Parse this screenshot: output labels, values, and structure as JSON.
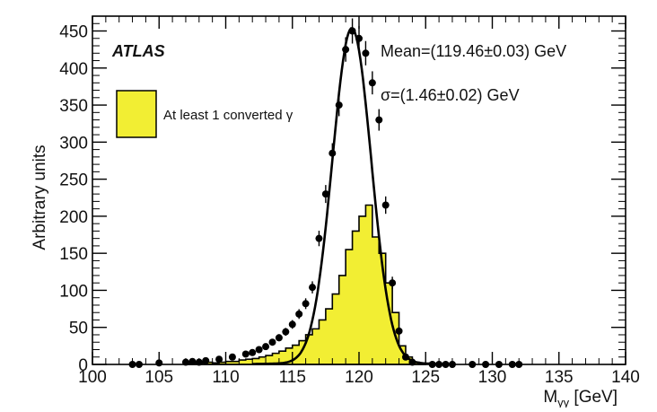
{
  "chart_data": {
    "type": "histogram",
    "experiment_label": "ATLAS",
    "xlabel": "M",
    "xlabel_sub": "γγ",
    "xlabel_unit": " [GeV]",
    "ylabel": "Arbitrary units",
    "xlim": [
      100,
      140
    ],
    "ylim": [
      0,
      470
    ],
    "x_ticks": [
      100,
      105,
      110,
      115,
      120,
      125,
      130,
      135,
      140
    ],
    "y_ticks": [
      0,
      50,
      100,
      150,
      200,
      250,
      300,
      350,
      400,
      450
    ],
    "annotations": {
      "mean": "Mean=(119.46±0.03) GeV",
      "sigma": "σ=(1.46±0.02) GeV"
    },
    "legend": {
      "label": "At least 1 converted γ",
      "color": "#f2ee33"
    },
    "colors": {
      "fill": "#f2ee33",
      "line": "#000000"
    },
    "converted_histogram": {
      "bin_width": 0.5,
      "edges_start": 107,
      "values": [
        1,
        2,
        2,
        3,
        2,
        3,
        4,
        4,
        6,
        7,
        8,
        10,
        12,
        15,
        18,
        22,
        26,
        32,
        40,
        48,
        60,
        75,
        95,
        120,
        155,
        180,
        200,
        215,
        172,
        150,
        110,
        70,
        25,
        10,
        3,
        1
      ]
    },
    "all_events_points": {
      "x": [
        103.0,
        103.5,
        105.0,
        107.0,
        107.5,
        108.0,
        108.5,
        109.5,
        110.5,
        111.5,
        112.0,
        112.5,
        113.0,
        113.5,
        114.0,
        114.5,
        115.0,
        115.5,
        116.0,
        116.5,
        117.0,
        117.5,
        118.0,
        118.5,
        119.0,
        119.5,
        120.0,
        120.5,
        121.0,
        121.5,
        122.0,
        122.5,
        123.0,
        123.5,
        124.0,
        125.5,
        126.0,
        126.5,
        127.0,
        128.5,
        129.5,
        130.5,
        131.5,
        132.0
      ],
      "y": [
        0,
        0,
        2,
        3,
        4,
        3,
        5,
        7,
        10,
        14,
        16,
        20,
        24,
        30,
        36,
        44,
        54,
        68,
        82,
        104,
        170,
        230,
        285,
        350,
        425,
        450,
        440,
        420,
        380,
        330,
        215,
        110,
        45,
        10,
        3,
        0,
        0,
        0,
        0,
        0,
        0,
        0,
        0,
        0
      ]
    },
    "fit": {
      "mean": 119.46,
      "sigma": 1.46,
      "peak": 450
    }
  }
}
